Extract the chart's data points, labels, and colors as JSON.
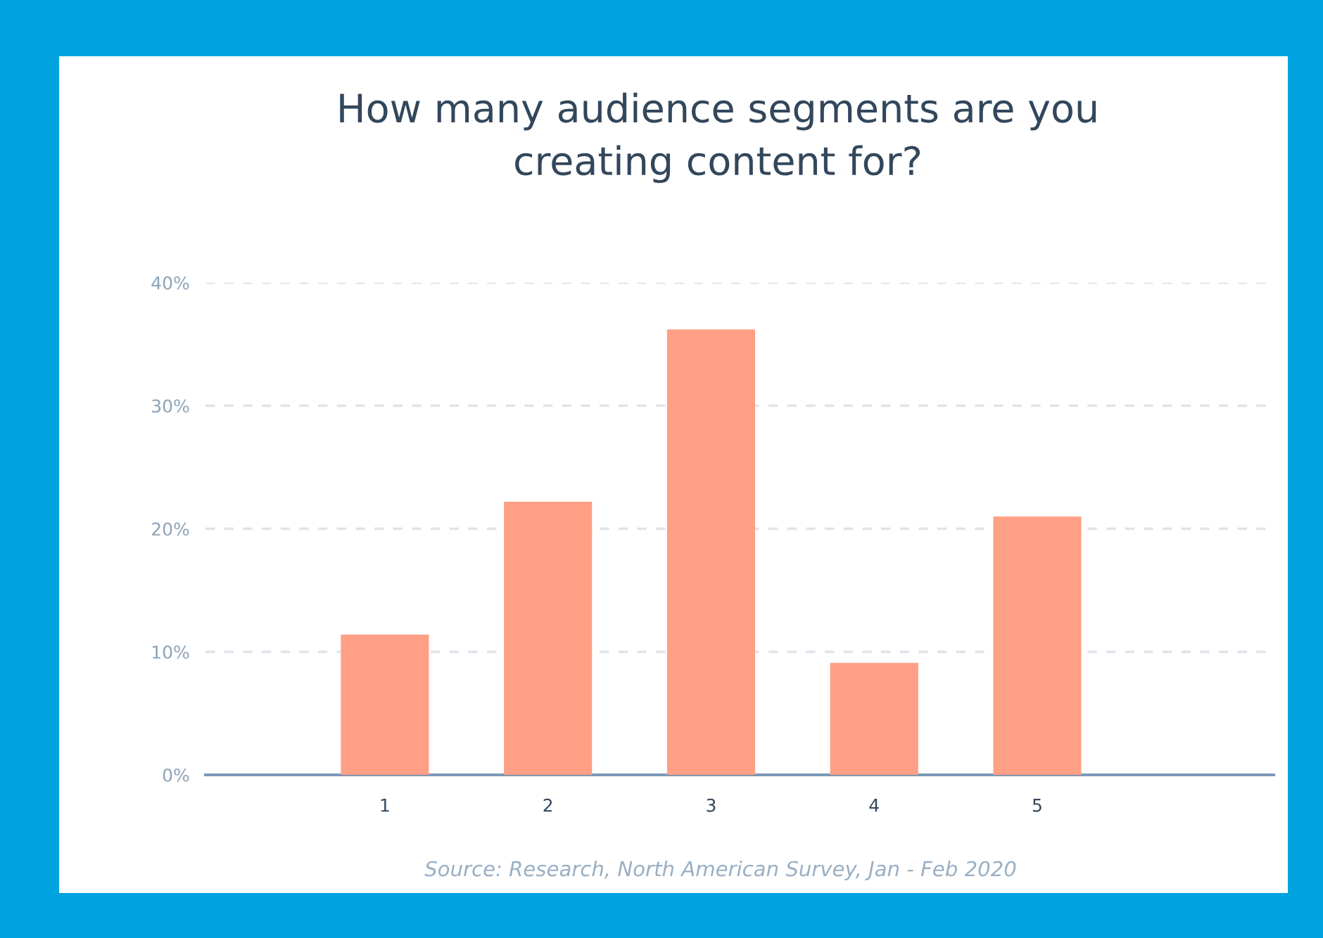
{
  "chart_data": {
    "type": "bar",
    "title": "How many audience segments are you\ncreating content for?",
    "categories": [
      "1",
      "2",
      "3",
      "4",
      "5"
    ],
    "values": [
      11.4,
      22.2,
      36.2,
      9.1,
      21.0
    ],
    "color": "#ff9f85",
    "ylim": [
      0,
      40
    ],
    "yticks": [
      {
        "value": 0,
        "label": "0%"
      },
      {
        "value": 10,
        "label": "10%"
      },
      {
        "value": 20,
        "label": "20%"
      },
      {
        "value": 30,
        "label": "30%"
      },
      {
        "value": 40,
        "label": "40%"
      }
    ],
    "grid": "y",
    "annotations": [
      "Source: Research, North American Survey, Jan - Feb 2020"
    ]
  }
}
